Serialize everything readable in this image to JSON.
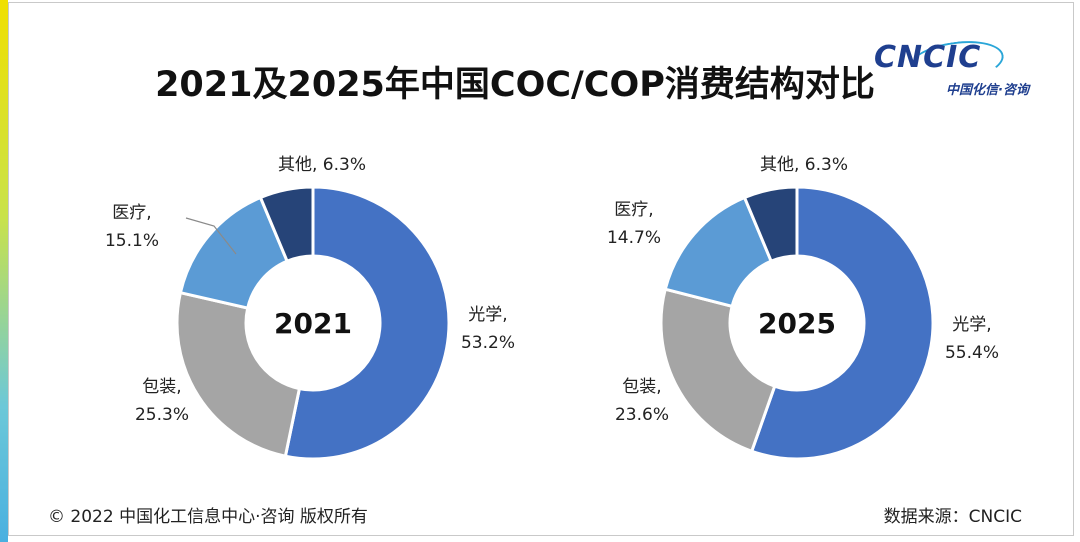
{
  "title": "2021及2025年中国COC/COP消费结构对比",
  "logo": {
    "text": "CNCIC",
    "sub": "中国化信·咨询"
  },
  "colors": {
    "光学": "#4472c4",
    "包装": "#a5a5a5",
    "医疗": "#5b9bd5",
    "其他": "#264478"
  },
  "chart_data": [
    {
      "type": "pie",
      "center_label": "2021",
      "categories": [
        "光学",
        "包装",
        "医疗",
        "其他"
      ],
      "values": [
        53.2,
        25.3,
        15.1,
        6.3
      ],
      "labels": [
        [
          "光学,",
          "53.2%"
        ],
        [
          "包装,",
          "25.3%"
        ],
        [
          "医疗,",
          "15.1%"
        ],
        [
          "其他, 6.3%"
        ]
      ]
    },
    {
      "type": "pie",
      "center_label": "2025",
      "categories": [
        "光学",
        "包装",
        "医疗",
        "其他"
      ],
      "values": [
        55.4,
        23.6,
        14.7,
        6.3
      ],
      "labels": [
        [
          "光学,",
          "55.4%"
        ],
        [
          "包装,",
          "23.6%"
        ],
        [
          "医疗,",
          "14.7%"
        ],
        [
          "其他, 6.3%"
        ]
      ]
    }
  ],
  "footer": {
    "copyright": "© 2022 中国化工信息中心·咨询 版权所有",
    "source": "数据来源：CNCIC"
  }
}
